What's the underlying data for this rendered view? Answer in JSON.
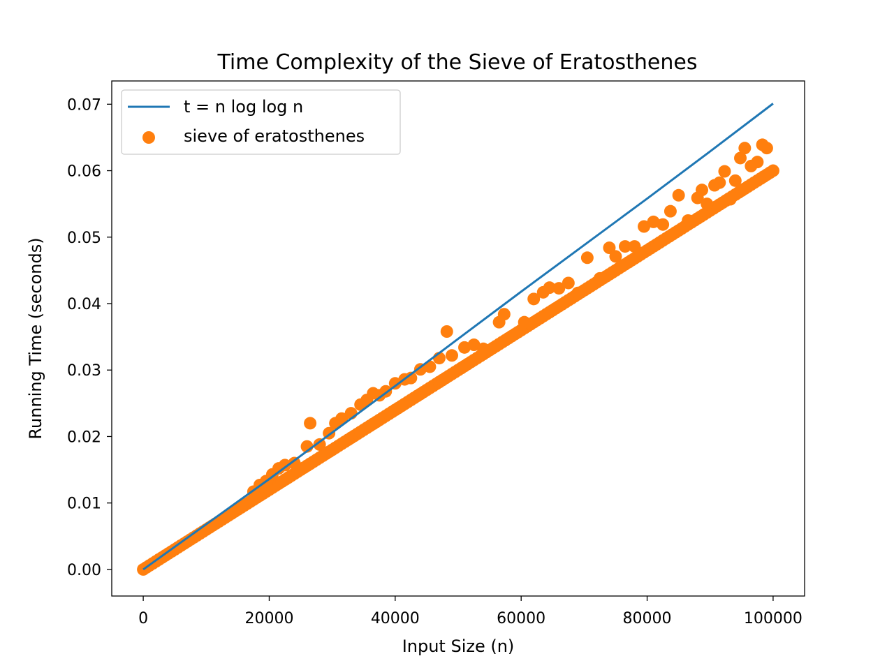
{
  "chart_data": {
    "type": "scatter",
    "title": "Time Complexity of the Sieve of Eratosthenes",
    "xlabel": "Input Size (n)",
    "ylabel": "Running Time (seconds)",
    "xlim": [
      -5000,
      105000
    ],
    "ylim": [
      -0.004,
      0.0735
    ],
    "xticks": [
      0,
      20000,
      40000,
      60000,
      80000,
      100000
    ],
    "xtick_labels": [
      "0",
      "20000",
      "40000",
      "60000",
      "80000",
      "100000"
    ],
    "yticks": [
      0.0,
      0.01,
      0.02,
      0.03,
      0.04,
      0.05,
      0.06,
      0.07
    ],
    "ytick_labels": [
      "0.00",
      "0.01",
      "0.02",
      "0.03",
      "0.04",
      "0.05",
      "0.06",
      "0.07"
    ],
    "grid": false,
    "legend": {
      "position": "top-left",
      "entries": [
        {
          "label": "t = n log log n",
          "kind": "line",
          "color": "#1f77b4"
        },
        {
          "label": "sieve of eratosthenes",
          "kind": "marker",
          "color": "#ff7f0e"
        }
      ]
    },
    "series": [
      {
        "name": "t = n log log n",
        "kind": "line",
        "color": "#1f77b4",
        "x": [
          0,
          10000,
          20000,
          30000,
          40000,
          50000,
          60000,
          70000,
          80000,
          90000,
          100000
        ],
        "y": [
          0.0,
          0.0068,
          0.0136,
          0.0206,
          0.0276,
          0.0347,
          0.0418,
          0.0488,
          0.0558,
          0.0629,
          0.0701
        ]
      },
      {
        "name": "sieve of eratosthenes",
        "kind": "scatter",
        "color": "#ff7f0e",
        "x": [
          0,
          500,
          1000,
          1500,
          2000,
          2500,
          3000,
          3500,
          4000,
          4500,
          5000,
          5500,
          6000,
          6500,
          7000,
          7500,
          8000,
          8500,
          9000,
          9500,
          10000,
          10500,
          11000,
          11500,
          12000,
          12500,
          13000,
          13500,
          14000,
          14500,
          15000,
          15500,
          16000,
          16500,
          17000,
          17500,
          18000,
          18500,
          19000,
          19500,
          20000,
          20500,
          21000,
          21500,
          22000,
          22500,
          23000,
          23500,
          24000,
          24500,
          25000,
          25500,
          26000,
          26500,
          27000,
          27500,
          28000,
          28500,
          29000,
          29500,
          30000,
          30500,
          31000,
          31500,
          32000,
          32500,
          33000,
          33500,
          34000,
          34500,
          35000,
          35500,
          36000,
          36500,
          37000,
          37500,
          38000,
          38500,
          39000,
          39500,
          40000,
          40500,
          41000,
          41500,
          42000,
          42500,
          43000,
          43500,
          44000,
          44500,
          45000,
          45500,
          46000,
          46500,
          47000,
          47500,
          48000,
          48500,
          49000,
          49500,
          50000,
          50500,
          51000,
          51500,
          52000,
          52500,
          53000,
          53500,
          54000,
          54500,
          55000,
          55500,
          56000,
          56500,
          57000,
          57500,
          58000,
          58500,
          59000,
          59500,
          60000,
          60500,
          61000,
          61500,
          62000,
          62500,
          63000,
          63500,
          64000,
          64500,
          65000,
          65500,
          66000,
          66500,
          67000,
          67500,
          68000,
          68500,
          69000,
          69500,
          70000,
          70500,
          71000,
          71500,
          72000,
          72500,
          73000,
          73500,
          74000,
          74500,
          75000,
          75500,
          76000,
          76500,
          77000,
          77500,
          78000,
          78500,
          79000,
          79500,
          80000,
          80500,
          81000,
          81500,
          82000,
          82500,
          83000,
          83500,
          84000,
          84500,
          85000,
          85500,
          86000,
          86500,
          87000,
          87500,
          88000,
          88500,
          89000,
          89500,
          90000,
          90500,
          91000,
          91500,
          92000,
          92500,
          93000,
          93500,
          94000,
          94500,
          95000,
          95500,
          96000,
          96500,
          97000,
          97500,
          98000,
          98500,
          99000,
          99500,
          100000,
          17500,
          18500,
          19500,
          20500,
          21500,
          22500,
          24000,
          26000,
          26500,
          28000,
          29500,
          30500,
          31500,
          33000,
          34500,
          35500,
          36500,
          37500,
          38500,
          40000,
          41500,
          42500,
          44000,
          45500,
          47000,
          48200,
          49000,
          51000,
          52500,
          54000,
          56500,
          57300,
          60500,
          62000,
          63500,
          64500,
          66000,
          67500,
          69000,
          70500,
          72500,
          74000,
          75000,
          76500,
          78000,
          79500,
          81000,
          82500,
          83700,
          85000,
          86500,
          88000,
          88700,
          89500,
          90700,
          91500,
          92300,
          93200,
          94000,
          94800,
          95500,
          96500,
          97500,
          98300,
          99000
        ],
        "y": [
          0.0,
          0.0003,
          0.0006,
          0.0009,
          0.0012,
          0.0015,
          0.0018,
          0.0021,
          0.0024,
          0.0027,
          0.003,
          0.0033,
          0.0036,
          0.0039,
          0.0042,
          0.0045,
          0.0048,
          0.0051,
          0.0054,
          0.0057,
          0.006,
          0.0063,
          0.0066,
          0.0069,
          0.0072,
          0.0075,
          0.0078,
          0.0081,
          0.0084,
          0.0087,
          0.009,
          0.0093,
          0.0096,
          0.0099,
          0.0102,
          0.0105,
          0.0108,
          0.0111,
          0.0114,
          0.0117,
          0.012,
          0.0123,
          0.0126,
          0.0129,
          0.0132,
          0.0135,
          0.0138,
          0.0141,
          0.0144,
          0.0147,
          0.015,
          0.0153,
          0.0156,
          0.0159,
          0.0162,
          0.0165,
          0.0168,
          0.0171,
          0.0174,
          0.0177,
          0.018,
          0.0183,
          0.0186,
          0.0189,
          0.0192,
          0.0195,
          0.0198,
          0.0201,
          0.0204,
          0.0207,
          0.021,
          0.0213,
          0.0216,
          0.0219,
          0.0222,
          0.0225,
          0.0228,
          0.0231,
          0.0234,
          0.0237,
          0.024,
          0.0243,
          0.0246,
          0.0249,
          0.0252,
          0.0255,
          0.0258,
          0.0261,
          0.0264,
          0.0267,
          0.027,
          0.0273,
          0.0276,
          0.0279,
          0.0282,
          0.0285,
          0.0288,
          0.0291,
          0.0294,
          0.0297,
          0.03,
          0.0303,
          0.0306,
          0.0309,
          0.0312,
          0.0315,
          0.0318,
          0.0321,
          0.0324,
          0.0327,
          0.033,
          0.0333,
          0.0336,
          0.0339,
          0.0342,
          0.0345,
          0.0348,
          0.0351,
          0.0354,
          0.0357,
          0.036,
          0.0363,
          0.0366,
          0.0369,
          0.0372,
          0.0375,
          0.0378,
          0.0381,
          0.0384,
          0.0387,
          0.039,
          0.0393,
          0.0396,
          0.0399,
          0.0402,
          0.0405,
          0.0408,
          0.0411,
          0.0414,
          0.0417,
          0.042,
          0.0423,
          0.0426,
          0.0429,
          0.0432,
          0.0435,
          0.0438,
          0.0441,
          0.0444,
          0.0447,
          0.045,
          0.0453,
          0.0456,
          0.0459,
          0.0462,
          0.0465,
          0.0468,
          0.0471,
          0.0474,
          0.0477,
          0.048,
          0.0483,
          0.0486,
          0.0489,
          0.0492,
          0.0495,
          0.0498,
          0.0501,
          0.0504,
          0.0507,
          0.051,
          0.0513,
          0.0516,
          0.0519,
          0.0522,
          0.0525,
          0.0528,
          0.0531,
          0.0534,
          0.0537,
          0.054,
          0.0543,
          0.0546,
          0.0549,
          0.0552,
          0.0555,
          0.0558,
          0.0561,
          0.0564,
          0.0567,
          0.057,
          0.0573,
          0.0576,
          0.0579,
          0.0582,
          0.0585,
          0.0588,
          0.0591,
          0.0594,
          0.0597,
          0.06,
          0.0117,
          0.0127,
          0.0133,
          0.0143,
          0.0152,
          0.0157,
          0.016,
          0.0185,
          0.022,
          0.0188,
          0.0205,
          0.022,
          0.0227,
          0.0235,
          0.0248,
          0.0255,
          0.0265,
          0.0262,
          0.0268,
          0.028,
          0.0286,
          0.0288,
          0.0301,
          0.0305,
          0.0318,
          0.0358,
          0.0322,
          0.0334,
          0.0338,
          0.0332,
          0.0372,
          0.0384,
          0.0372,
          0.0407,
          0.0417,
          0.0424,
          0.0423,
          0.0431,
          0.0416,
          0.0469,
          0.0438,
          0.0484,
          0.0471,
          0.0486,
          0.0486,
          0.0516,
          0.0523,
          0.0519,
          0.0539,
          0.0563,
          0.0525,
          0.0559,
          0.0571,
          0.055,
          0.0578,
          0.0582,
          0.0599,
          0.0557,
          0.0585,
          0.0619,
          0.0634,
          0.0607,
          0.0613,
          0.0639,
          0.0634
        ]
      }
    ]
  }
}
